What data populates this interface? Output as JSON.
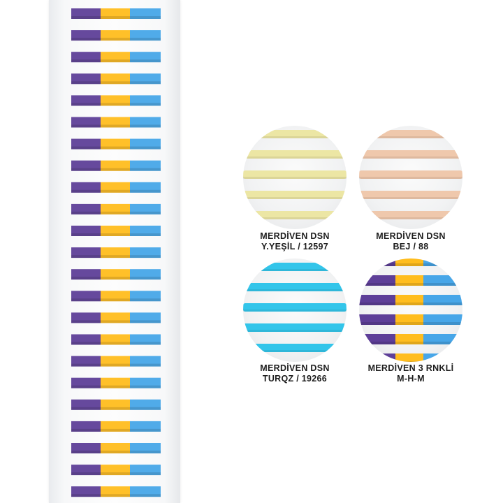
{
  "ribbon": {
    "colors": [
      "#5e3f98",
      "#ffbd1e",
      "#47a6e8"
    ]
  },
  "swatches": [
    {
      "line1": "MERDİVEN DSN",
      "line2": "Y.YEŞİL / 12597",
      "color": "#ece6a4",
      "style": "single"
    },
    {
      "line1": "MERDİVEN DSN",
      "line2": "BEJ / 88",
      "color": "#efc8ac",
      "style": "single"
    },
    {
      "line1": "MERDİVEN DSN",
      "line2": "TURQZ / 19266",
      "color": "#33c5ea",
      "style": "single"
    },
    {
      "line1": "MERDİVEN 3 RNKLİ",
      "line2": "M-H-M",
      "colors": [
        "#5e3f98",
        "#ffbd1e",
        "#47a6e8"
      ],
      "style": "tricolor"
    }
  ]
}
